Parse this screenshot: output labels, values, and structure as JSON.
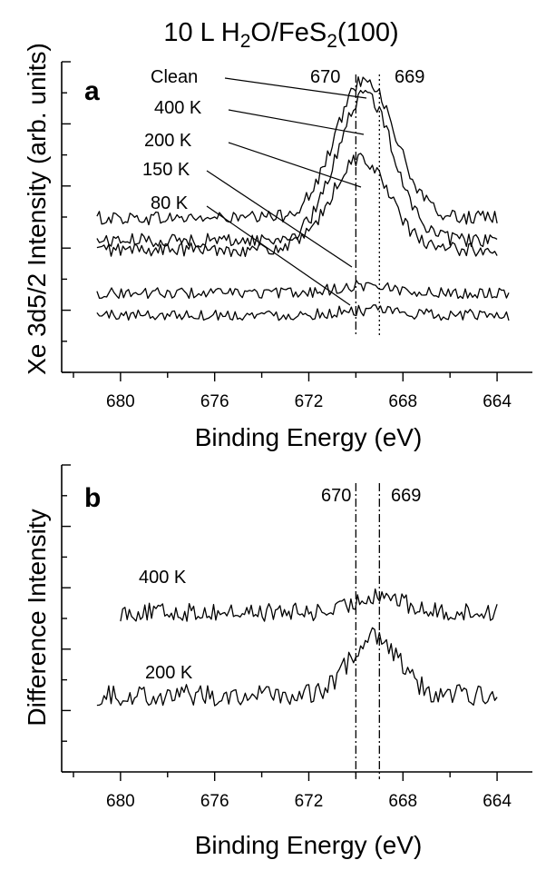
{
  "figure_title_main": "10 L H",
  "figure_title_sub1": "2",
  "figure_title_mid": "O/FeS",
  "figure_title_sub2": "2",
  "figure_title_end": "(100)",
  "chart_data": [
    {
      "type": "line",
      "panel_label": "a",
      "xlabel": "Binding Energy (eV)",
      "ylabel": "Xe 3d5/2 Intensity (arb. units)",
      "x_axis_reversed": true,
      "xlim": [
        682.5,
        662.5
      ],
      "x_ticks": [
        680,
        676,
        672,
        668,
        664
      ],
      "ylim": [
        0,
        10
      ],
      "y_labeled_ticks": false,
      "grid": false,
      "reference_lines": [
        {
          "x": 670,
          "label": "670",
          "style": "dash-dot"
        },
        {
          "x": 669,
          "label": "669",
          "style": "dotted"
        }
      ],
      "series": [
        {
          "name": "Clean",
          "x_range": [
            681,
            664
          ],
          "baseline": 4.97,
          "peak_center": 669.6,
          "peak_width": 1.25,
          "peak_height": 4.5,
          "noise": 0.22
        },
        {
          "name": "400 K",
          "x_range": [
            681,
            664
          ],
          "baseline": 4.25,
          "peak_center": 669.6,
          "peak_width": 1.2,
          "peak_height": 4.7,
          "noise": 0.22
        },
        {
          "name": "200 K",
          "x_range": [
            681,
            664
          ],
          "baseline": 3.95,
          "peak_center": 669.8,
          "peak_width": 1.2,
          "peak_height": 2.95,
          "noise": 0.22
        },
        {
          "name": "150 K",
          "x_range": [
            681,
            663.5
          ],
          "baseline": 2.55,
          "peak_center": 669.6,
          "peak_width": 1.2,
          "peak_height": 0.25,
          "noise": 0.18
        },
        {
          "name": "80 K",
          "x_range": [
            681,
            663.5
          ],
          "baseline": 1.85,
          "peak_center": 669.6,
          "peak_width": 1.2,
          "peak_height": 0.15,
          "noise": 0.18
        }
      ]
    },
    {
      "type": "line",
      "panel_label": "b",
      "xlabel": "Binding Energy (eV)",
      "ylabel": "Difference Intensity",
      "x_axis_reversed": true,
      "xlim": [
        682.5,
        662.5
      ],
      "x_ticks": [
        680,
        676,
        672,
        668,
        664
      ],
      "ylim": [
        0,
        10
      ],
      "y_labeled_ticks": false,
      "grid": false,
      "reference_lines": [
        {
          "x": 670,
          "label": "670",
          "style": "dash-dot"
        },
        {
          "x": 669,
          "label": "669",
          "style": "dash-dot"
        }
      ],
      "series": [
        {
          "name": "400 K",
          "x_range": [
            680,
            664
          ],
          "baseline": 5.2,
          "peak_center": 669.0,
          "peak_width": 0.9,
          "peak_height": 0.6,
          "noise": 0.3
        },
        {
          "name": "200 K",
          "x_range": [
            681,
            664
          ],
          "baseline": 2.5,
          "peak_center": 669.2,
          "peak_width": 1.0,
          "peak_height": 2.0,
          "noise": 0.35
        }
      ]
    }
  ]
}
